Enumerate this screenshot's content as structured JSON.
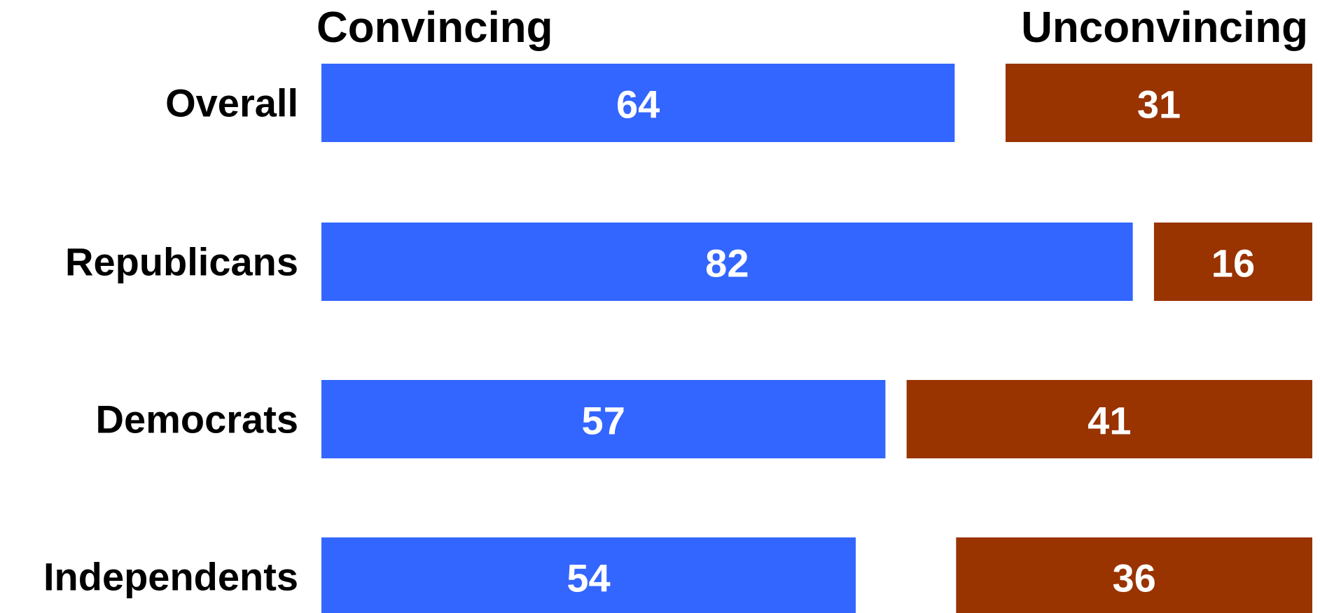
{
  "chart_data": {
    "type": "bar",
    "orientation": "horizontal",
    "stacking": "diverging-split",
    "categories": [
      "Overall",
      "Republicans",
      "Democrats",
      "Independents"
    ],
    "series": [
      {
        "name": "Convincing",
        "color": "#3366ff",
        "values": [
          64,
          82,
          57,
          54
        ]
      },
      {
        "name": "Unconvincing",
        "color": "#993300",
        "values": [
          31,
          16,
          41,
          36
        ]
      }
    ],
    "headers": {
      "left": "Convincing",
      "right": "Unconvincing"
    },
    "title": "",
    "xlabel": "",
    "ylabel": "",
    "value_labels": "inside-bar",
    "grid": false,
    "legend": "none"
  }
}
